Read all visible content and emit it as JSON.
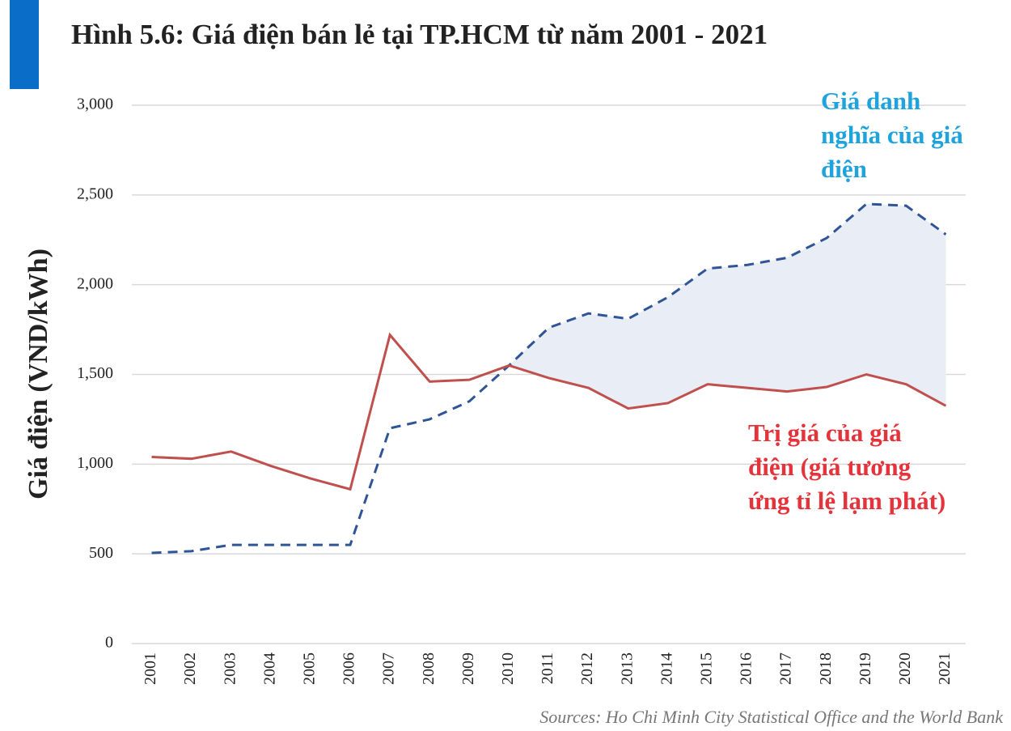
{
  "chart_data": {
    "type": "line",
    "title": "Hình 5.6: Giá điện bán lẻ tại TP.HCM từ năm 2001 - 2021",
    "y_label": "Giá điện (VND/kWh)",
    "source": "Sources: Ho Chi Minh City Statistical Office and the World Bank",
    "annotations": [
      {
        "lines": [
          "Giá danh",
          "nghĩa của giá",
          "điện"
        ],
        "color": "#1fa3dc"
      },
      {
        "lines": [
          "Trị giá của giá",
          "điện (giá tương",
          "ứng tỉ lệ lạm phát)"
        ],
        "color": "#e5333b"
      }
    ],
    "categories": [
      "2001",
      "2002",
      "2003",
      "2004",
      "2005",
      "2006",
      "2007",
      "2008",
      "2009",
      "2010",
      "2011",
      "2012",
      "2013",
      "2014",
      "2015",
      "2016",
      "2017",
      "2018",
      "2019",
      "2020",
      "2021"
    ],
    "series": [
      {
        "name": "Giá danh nghĩa",
        "color": "#2f5597",
        "dashed": true,
        "values": [
          505,
          515,
          550,
          550,
          550,
          550,
          1200,
          1250,
          1350,
          1550,
          1760,
          1840,
          1810,
          1930,
          2090,
          2110,
          2150,
          2260,
          2450,
          2440,
          2280
        ]
      },
      {
        "name": "Trị giá",
        "color": "#c0504d",
        "dashed": false,
        "values": [
          1040,
          1030,
          1070,
          990,
          920,
          860,
          1720,
          1460,
          1470,
          1550,
          1480,
          1425,
          1310,
          1340,
          1445,
          1425,
          1405,
          1430,
          1500,
          1445,
          1325
        ]
      }
    ],
    "fill_between_color": "#e9edf6",
    "ylim": [
      0,
      3000
    ],
    "yticks": [
      0,
      500,
      {
        "value": 1000,
        "label": "1,000"
      },
      {
        "value": 1500,
        "label": "1,500"
      },
      {
        "value": 2000,
        "label": "2,000"
      },
      {
        "value": 2500,
        "label": "2,500"
      },
      {
        "value": 3000,
        "label": "3,000"
      }
    ],
    "grid": true
  }
}
